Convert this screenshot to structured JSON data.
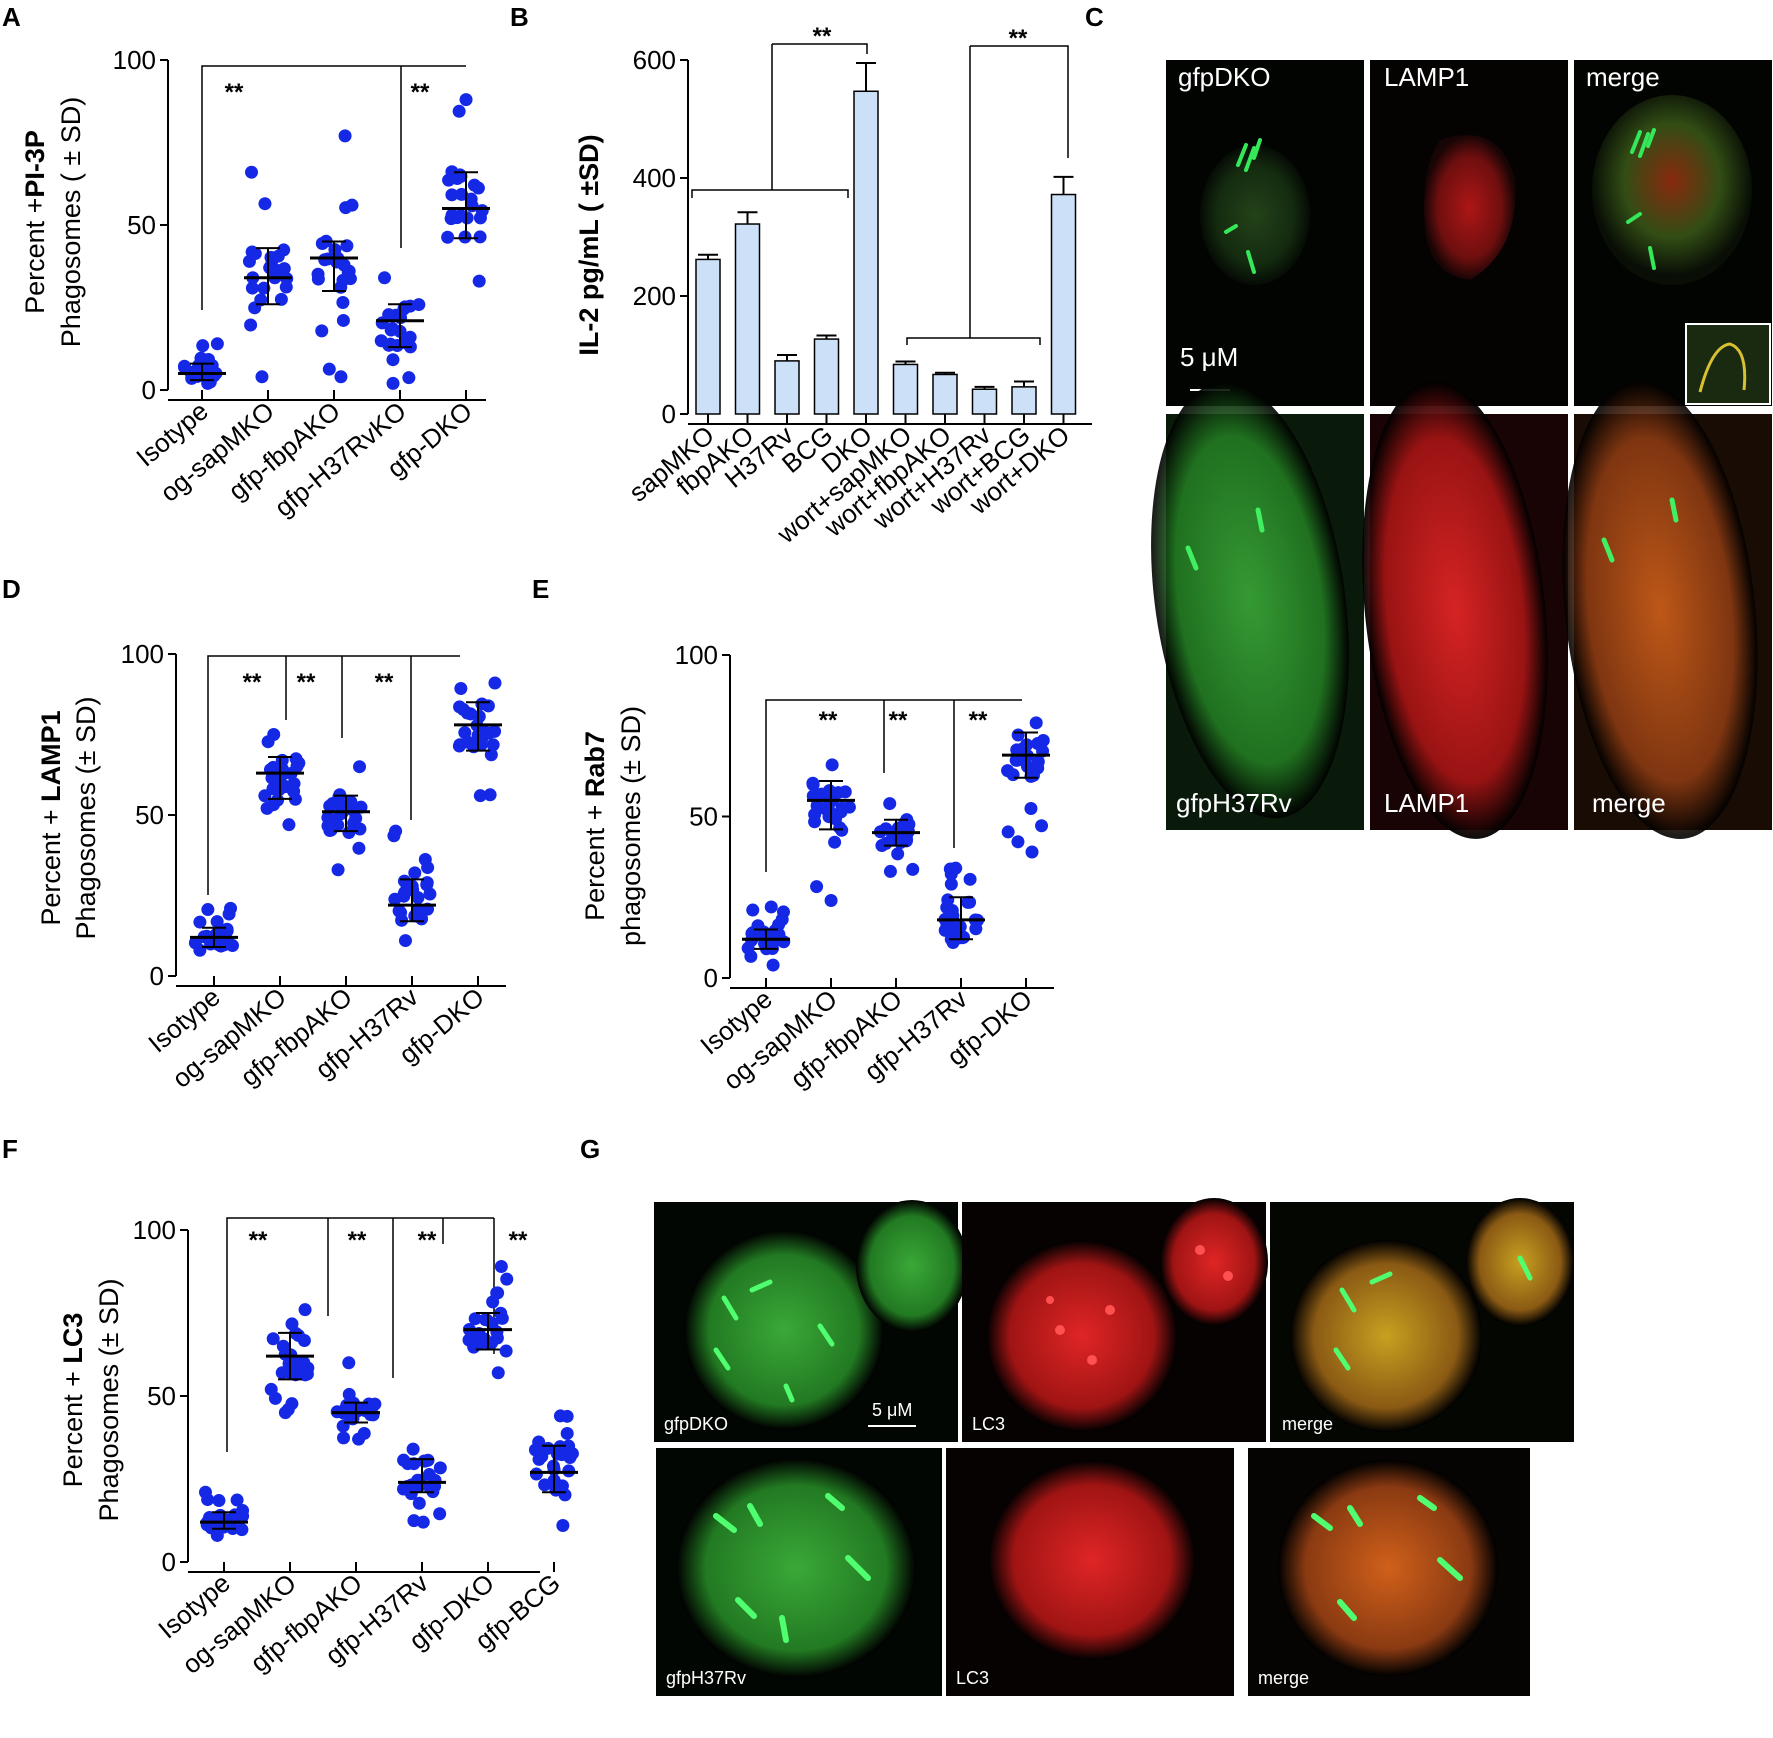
{
  "panel_labels": [
    "A",
    "B",
    "C",
    "D",
    "E",
    "F",
    "G"
  ],
  "significance": "**",
  "chart_data": [
    {
      "id": "A",
      "type": "scatter",
      "ylabel_pre": "Percent +",
      "ylabel_bold": "PI-3P",
      "ylabel_line2": "Phagosomes ( ± SD)",
      "ylim": [
        0,
        100
      ],
      "yticks": [
        0,
        50,
        100
      ],
      "categories": [
        "Isotype",
        "og-sapMKO",
        "gfp-fbpAKO",
        "gfp-H37RvKO",
        "gfp-DKO"
      ],
      "mean": [
        5,
        34,
        40,
        21,
        55
      ],
      "sd_low": [
        3,
        26,
        30,
        13,
        46
      ],
      "sd_high": [
        8,
        43,
        45,
        26,
        66
      ],
      "min": [
        2,
        4,
        4,
        2,
        33
      ],
      "max": [
        14,
        66,
        77,
        34,
        88
      ],
      "n_points": 24
    },
    {
      "id": "B",
      "type": "bar",
      "ylabel": "IL-2 pg/mL ( ±SD)",
      "ylim": [
        0,
        600
      ],
      "yticks": [
        0,
        200,
        400,
        600
      ],
      "categories": [
        "sapMKO",
        "fbpAKO",
        "H37Rv",
        "BCG",
        "DKO",
        "wort+sapMKO",
        "wort+fbpAKO",
        "wort+H37Rv",
        "wort+BCG",
        "wort+DKO"
      ],
      "values": [
        262,
        322,
        90,
        127,
        547,
        84,
        67,
        42,
        46,
        372
      ],
      "errors": [
        8,
        20,
        10,
        6,
        48,
        5,
        3,
        4,
        9,
        30
      ]
    },
    {
      "id": "D",
      "type": "scatter",
      "ylabel_pre": "Percent + ",
      "ylabel_bold": "LAMP1",
      "ylabel_line2": "Phagosomes (± SD)",
      "ylim": [
        0,
        100
      ],
      "yticks": [
        0,
        50,
        100
      ],
      "categories": [
        "Isotype",
        "og-sapMKO",
        "gfp-fbpAKO",
        "gfp-H37Rv",
        "gfp-DKO"
      ],
      "mean": [
        12,
        63,
        51,
        22,
        78
      ],
      "sd_low": [
        9,
        55,
        45,
        17,
        70
      ],
      "sd_high": [
        15,
        68,
        56,
        30,
        85
      ],
      "min": [
        8,
        47,
        33,
        11,
        56
      ],
      "max": [
        21,
        75,
        65,
        45,
        91
      ],
      "n_points": 26
    },
    {
      "id": "E",
      "type": "scatter",
      "ylabel_pre": "Percent + ",
      "ylabel_bold": "Rab7",
      "ylabel_line2": "phagosomes (± SD)",
      "ylim": [
        0,
        100
      ],
      "yticks": [
        0,
        50,
        100
      ],
      "categories": [
        "Isotype",
        "og-sapMKO",
        "gfp-fbpAKO",
        "gfp-H37Rv",
        "gfp-DKO"
      ],
      "mean": [
        12,
        55,
        45,
        18,
        69
      ],
      "sd_low": [
        9,
        46,
        41,
        12,
        62
      ],
      "sd_high": [
        15,
        61,
        49,
        25,
        76
      ],
      "min": [
        4,
        24,
        33,
        11,
        39
      ],
      "max": [
        22,
        66,
        54,
        34,
        79
      ],
      "n_points": 26
    },
    {
      "id": "F",
      "type": "scatter",
      "ylabel_pre": "Percent + ",
      "ylabel_bold": "LC3",
      "ylabel_line2": "Phagosomes (± SD)",
      "ylim": [
        0,
        100
      ],
      "yticks": [
        0,
        50,
        100
      ],
      "categories": [
        "Isotype",
        "og-sapMKO",
        "gfp-fbpAKO",
        "gfp-H37Rv",
        "gfp-DKO",
        "gfp-BCG"
      ],
      "mean": [
        12,
        62,
        45,
        24,
        70,
        27
      ],
      "sd_low": [
        10,
        55,
        42,
        21,
        64,
        21
      ],
      "sd_high": [
        15,
        69,
        48,
        31,
        75,
        35
      ],
      "min": [
        8,
        45,
        37,
        12,
        57,
        11
      ],
      "max": [
        21,
        76,
        60,
        34,
        89,
        44
      ],
      "n_points": 26
    }
  ],
  "micrographs": {
    "C": {
      "top": [
        "gfpDKO",
        "LAMP1",
        "merge"
      ],
      "bottom": [
        "gfpH37Rv",
        "LAMP1",
        "merge"
      ],
      "scale": "5 μM"
    },
    "G": {
      "top": [
        "gfpDKO",
        "LC3",
        "merge"
      ],
      "bottom": [
        "gfpH37Rv",
        "LC3",
        "merge"
      ],
      "scale": "5 μM"
    }
  },
  "colors": {
    "dot": "#1428e6",
    "bar": "#cce0f8",
    "bar_stroke": "#000000",
    "green": "#2ee05a",
    "red": "#e02020",
    "orange": "#c8781e"
  }
}
